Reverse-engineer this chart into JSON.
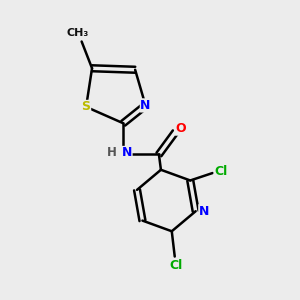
{
  "background_color": "#ececec",
  "bond_color": "#000000",
  "atoms": {
    "S": "#bbbb00",
    "N": "#0000ff",
    "O": "#ff0000",
    "Cl": "#00aa00",
    "C": "#000000",
    "H": "#555555"
  },
  "figsize": [
    3.0,
    3.0
  ],
  "dpi": 100
}
